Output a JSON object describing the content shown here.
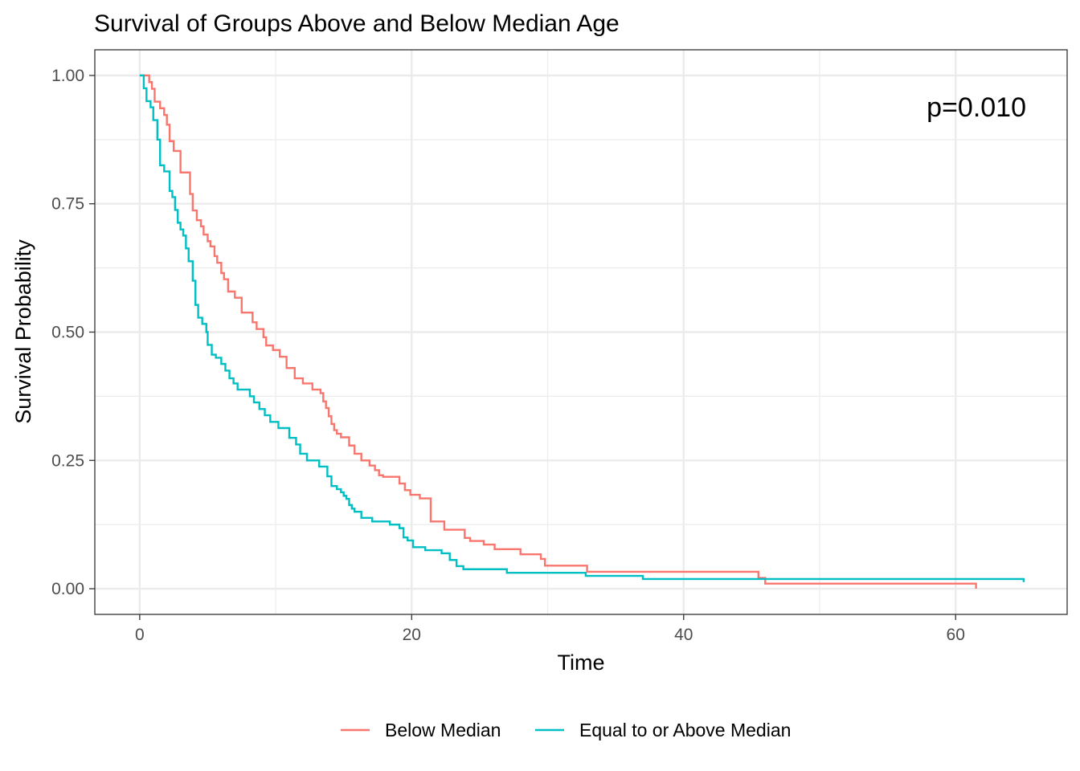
{
  "chart_data": {
    "type": "line",
    "step": true,
    "title": "Survival of Groups Above and Below Median Age",
    "xlabel": "Time",
    "ylabel": "Survival Probability",
    "xlim": [
      -3.3,
      68.2
    ],
    "ylim": [
      -0.05,
      1.05
    ],
    "x_ticks": [
      0,
      20,
      40,
      60
    ],
    "y_ticks": [
      0,
      0.25,
      0.5,
      0.75,
      1.0
    ],
    "x_tick_labels": [
      "0",
      "20",
      "40",
      "60"
    ],
    "y_tick_labels": [
      "0.00",
      "0.25",
      "0.50",
      "0.75",
      "1.00"
    ],
    "grid": true,
    "legend_position": "bottom",
    "annotation": "p=0.010",
    "series": [
      {
        "name": "Below Median",
        "color": "#F8766D",
        "x": [
          0,
          0.7,
          0.9,
          1.1,
          1.5,
          1.8,
          2.0,
          2.2,
          2.5,
          3.0,
          3.7,
          3.9,
          4.2,
          4.5,
          4.7,
          5.0,
          5.2,
          5.5,
          5.7,
          6.0,
          6.2,
          6.5,
          7.0,
          7.5,
          8.3,
          8.6,
          9.1,
          9.3,
          9.8,
          10.3,
          10.8,
          11.4,
          12.0,
          12.7,
          13.3,
          13.5,
          13.7,
          13.9,
          14.1,
          14.3,
          14.5,
          14.8,
          15.4,
          15.8,
          16.3,
          16.9,
          17.3,
          17.6,
          17.9,
          19.1,
          19.5,
          19.9,
          20.6,
          21.4,
          22.4,
          23.9,
          24.3,
          25.3,
          26.1,
          28.0,
          29.5,
          29.8,
          32.9,
          45.5,
          46.0,
          61.5
        ],
        "y": [
          1.0,
          0.987,
          0.974,
          0.949,
          0.936,
          0.923,
          0.904,
          0.872,
          0.853,
          0.811,
          0.769,
          0.737,
          0.718,
          0.706,
          0.69,
          0.677,
          0.667,
          0.648,
          0.635,
          0.615,
          0.603,
          0.579,
          0.567,
          0.538,
          0.519,
          0.506,
          0.49,
          0.474,
          0.465,
          0.452,
          0.43,
          0.41,
          0.4,
          0.388,
          0.381,
          0.365,
          0.352,
          0.336,
          0.321,
          0.309,
          0.302,
          0.295,
          0.279,
          0.263,
          0.25,
          0.24,
          0.231,
          0.221,
          0.218,
          0.205,
          0.192,
          0.183,
          0.176,
          0.131,
          0.115,
          0.099,
          0.093,
          0.086,
          0.077,
          0.067,
          0.058,
          0.045,
          0.033,
          0.021,
          0.01,
          0.0
        ]
      },
      {
        "name": "Equal to or Above Median",
        "color": "#00BFC4",
        "x": [
          0,
          0.3,
          0.5,
          0.8,
          1.0,
          1.3,
          1.5,
          1.8,
          2.2,
          2.4,
          2.6,
          2.8,
          3.0,
          3.2,
          3.4,
          3.6,
          3.9,
          4.1,
          4.3,
          4.6,
          4.9,
          5.0,
          5.3,
          5.6,
          6.0,
          6.3,
          6.6,
          6.9,
          7.2,
          8.1,
          8.4,
          8.8,
          9.2,
          9.6,
          10.2,
          11.0,
          11.5,
          11.8,
          12.3,
          13.2,
          13.8,
          14.1,
          14.5,
          14.8,
          15.0,
          15.2,
          15.4,
          15.6,
          15.8,
          16.3,
          17.1,
          18.4,
          19.1,
          19.4,
          19.7,
          20.1,
          21.0,
          22.2,
          22.8,
          23.3,
          23.8,
          27.0,
          32.8,
          37.0,
          65.0
        ],
        "y": [
          1.0,
          0.975,
          0.95,
          0.938,
          0.913,
          0.875,
          0.825,
          0.813,
          0.775,
          0.763,
          0.738,
          0.713,
          0.7,
          0.688,
          0.663,
          0.638,
          0.6,
          0.553,
          0.528,
          0.516,
          0.5,
          0.475,
          0.456,
          0.45,
          0.438,
          0.425,
          0.41,
          0.4,
          0.388,
          0.375,
          0.363,
          0.35,
          0.338,
          0.325,
          0.313,
          0.294,
          0.281,
          0.263,
          0.25,
          0.238,
          0.219,
          0.2,
          0.194,
          0.188,
          0.181,
          0.175,
          0.163,
          0.156,
          0.15,
          0.138,
          0.131,
          0.125,
          0.118,
          0.1,
          0.094,
          0.081,
          0.075,
          0.069,
          0.056,
          0.044,
          0.038,
          0.031,
          0.025,
          0.019,
          0.013
        ]
      }
    ]
  }
}
